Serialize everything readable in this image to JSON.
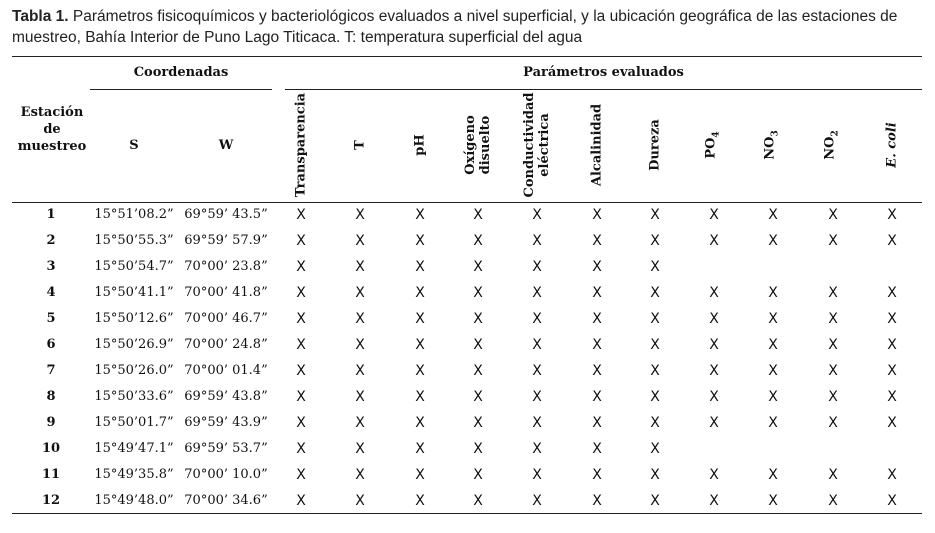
{
  "caption": {
    "label": "Tabla 1.",
    "text": " Parámetros fisicoquímicos y bacteriológicos evaluados a nivel superficial, y la ubicación geográfica de las estaciones de muestreo, Bahía Interior de Puno Lago Titicaca. T: temperatura superficial del agua"
  },
  "headers": {
    "station": [
      "Estación",
      "de",
      "muestreo"
    ],
    "coordinates": "Coordenadas",
    "parameters": "Parámetros evaluados",
    "s": "S",
    "w": "W",
    "params": [
      {
        "main": "Transparencia"
      },
      {
        "main": "T"
      },
      {
        "main": "pH"
      },
      {
        "main": "Oxígeno",
        "line2": "disuelto"
      },
      {
        "main": "Conductividad",
        "line2": "eléctrica"
      },
      {
        "main": "Alcalinidad"
      },
      {
        "main": "Dureza"
      },
      {
        "main": "PO",
        "sub": "4"
      },
      {
        "main": "NO",
        "sub": "3"
      },
      {
        "main": "NO",
        "sub": "2"
      },
      {
        "main": "E. coli",
        "italic": true
      }
    ]
  },
  "mark": "X",
  "rows": [
    {
      "station": "1",
      "s": "15°51’08.2”",
      "w": "69°59’ 43.5”",
      "marks": [
        1,
        1,
        1,
        1,
        1,
        1,
        1,
        1,
        1,
        1,
        1
      ]
    },
    {
      "station": "2",
      "s": "15°50’55.3”",
      "w": "69°59’ 57.9”",
      "marks": [
        1,
        1,
        1,
        1,
        1,
        1,
        1,
        1,
        1,
        1,
        1
      ]
    },
    {
      "station": "3",
      "s": "15°50’54.7”",
      "w": "70°00’ 23.8”",
      "marks": [
        1,
        1,
        1,
        1,
        1,
        1,
        1,
        0,
        0,
        0,
        0
      ]
    },
    {
      "station": "4",
      "s": "15°50’41.1”",
      "w": "70°00’ 41.8”",
      "marks": [
        1,
        1,
        1,
        1,
        1,
        1,
        1,
        1,
        1,
        1,
        1
      ]
    },
    {
      "station": "5",
      "s": "15°50’12.6”",
      "w": "70°00’ 46.7”",
      "marks": [
        1,
        1,
        1,
        1,
        1,
        1,
        1,
        1,
        1,
        1,
        1
      ]
    },
    {
      "station": "6",
      "s": "15°50’26.9”",
      "w": "70°00’ 24.8”",
      "marks": [
        1,
        1,
        1,
        1,
        1,
        1,
        1,
        1,
        1,
        1,
        1
      ]
    },
    {
      "station": "7",
      "s": "15°50’26.0”",
      "w": "70°00’ 01.4”",
      "marks": [
        1,
        1,
        1,
        1,
        1,
        1,
        1,
        1,
        1,
        1,
        1
      ]
    },
    {
      "station": "8",
      "s": "15°50’33.6”",
      "w": "69°59’ 43.8”",
      "marks": [
        1,
        1,
        1,
        1,
        1,
        1,
        1,
        1,
        1,
        1,
        1
      ]
    },
    {
      "station": "9",
      "s": "15°50’01.7”",
      "w": "69°59’ 43.9”",
      "marks": [
        1,
        1,
        1,
        1,
        1,
        1,
        1,
        1,
        1,
        1,
        1
      ]
    },
    {
      "station": "10",
      "s": "15°49’47.1”",
      "w": "69°59’ 53.7”",
      "marks": [
        1,
        1,
        1,
        1,
        1,
        1,
        1,
        0,
        0,
        0,
        0
      ]
    },
    {
      "station": "11",
      "s": "15°49’35.8”",
      "w": "70°00’ 10.0”",
      "marks": [
        1,
        1,
        1,
        1,
        1,
        1,
        1,
        1,
        1,
        1,
        1
      ]
    },
    {
      "station": "12",
      "s": "15°49’48.0”",
      "w": "70°00’ 34.6”",
      "marks": [
        1,
        1,
        1,
        1,
        1,
        1,
        1,
        1,
        1,
        1,
        1
      ]
    }
  ]
}
